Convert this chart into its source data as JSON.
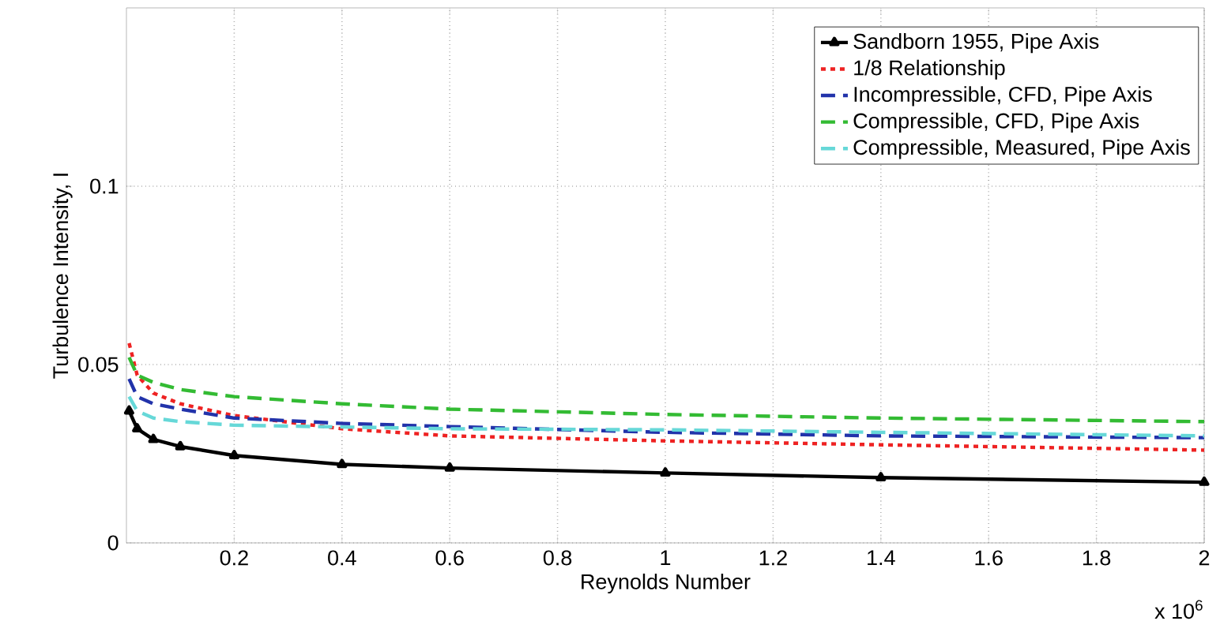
{
  "chart_data": {
    "type": "line",
    "xlabel": "Reynolds Number",
    "ylabel": "Turbulence Intensity, I",
    "annotations": [
      "x 10$^{6}$"
    ],
    "x": [
      0.005,
      0.02,
      0.05,
      0.1,
      0.2,
      0.4,
      0.6,
      1.0,
      1.4,
      2.0
    ],
    "series": [
      {
        "name": "Sandborn 1955, Pipe Axis",
        "color": "#000000",
        "marker": "triangle",
        "line_style": "solid",
        "values": [
          0.037,
          0.032,
          0.029,
          0.027,
          0.0245,
          0.022,
          0.021,
          0.0196,
          0.0183,
          0.017
        ]
      },
      {
        "name": "1/8 Relationship",
        "color": "#ee2222",
        "marker": "none",
        "line_style": "dotted",
        "values": [
          0.056,
          0.047,
          0.042,
          0.039,
          0.0357,
          0.032,
          0.03,
          0.0286,
          0.0275,
          0.026
        ]
      },
      {
        "name": "Incompressible, CFD, Pipe Axis",
        "color": "#2233aa",
        "marker": "none",
        "line_style": "dashed",
        "values": [
          0.046,
          0.041,
          0.039,
          0.0375,
          0.035,
          0.0335,
          0.0326,
          0.031,
          0.03,
          0.0295
        ]
      },
      {
        "name": "Compressible, CFD, Pipe Axis",
        "color": "#33bb33",
        "marker": "none",
        "line_style": "dashed",
        "values": [
          0.052,
          0.047,
          0.045,
          0.043,
          0.041,
          0.039,
          0.0375,
          0.036,
          0.035,
          0.034
        ]
      },
      {
        "name": "Compressible, Measured, Pipe Axis",
        "color": "#66d8d8",
        "marker": "none",
        "line_style": "dashed",
        "values": [
          0.041,
          0.037,
          0.035,
          0.034,
          0.033,
          0.0325,
          0.032,
          0.0317,
          0.031,
          0.03
        ]
      }
    ],
    "xlim": [
      0,
      2
    ],
    "xticks": [
      0.2,
      0.4,
      0.6,
      0.8,
      1,
      1.2,
      1.4,
      1.6,
      1.8,
      2
    ],
    "ylim": [
      0,
      0.15
    ],
    "yticks": [
      0,
      0.05,
      0.1
    ],
    "grid": true,
    "legend": "top right"
  }
}
